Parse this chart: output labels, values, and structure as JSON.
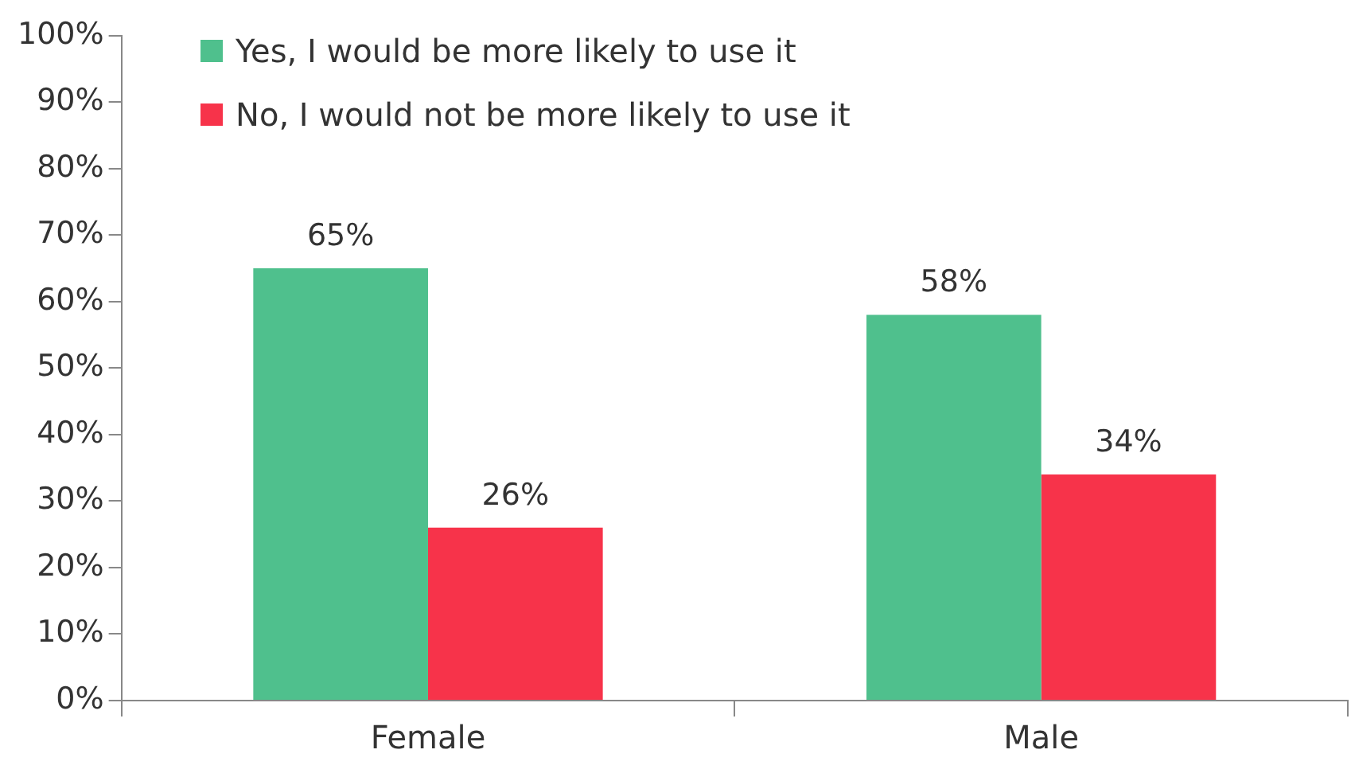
{
  "chart_data": {
    "type": "bar",
    "categories": [
      "Female",
      "Male"
    ],
    "series": [
      {
        "name": "Yes, I would be more likely to use it",
        "color": "#4fc08d",
        "values": [
          65,
          58
        ],
        "value_labels": [
          "65%",
          "58%"
        ]
      },
      {
        "name": "No, I would not be more likely to use it",
        "color": "#f7334a",
        "values": [
          26,
          34
        ],
        "value_labels": [
          "26%",
          "34%"
        ]
      }
    ],
    "ylim": [
      0,
      100
    ],
    "yticks": [
      {
        "value": 0,
        "label": "0%"
      },
      {
        "value": 10,
        "label": "10%"
      },
      {
        "value": 20,
        "label": "20%"
      },
      {
        "value": 30,
        "label": "30%"
      },
      {
        "value": 40,
        "label": "40%"
      },
      {
        "value": 50,
        "label": "50%"
      },
      {
        "value": 60,
        "label": "60%"
      },
      {
        "value": 70,
        "label": "70%"
      },
      {
        "value": 80,
        "label": "80%"
      },
      {
        "value": 90,
        "label": "90%"
      },
      {
        "value": 100,
        "label": "100%"
      }
    ],
    "grid": false,
    "legend": "top left"
  }
}
